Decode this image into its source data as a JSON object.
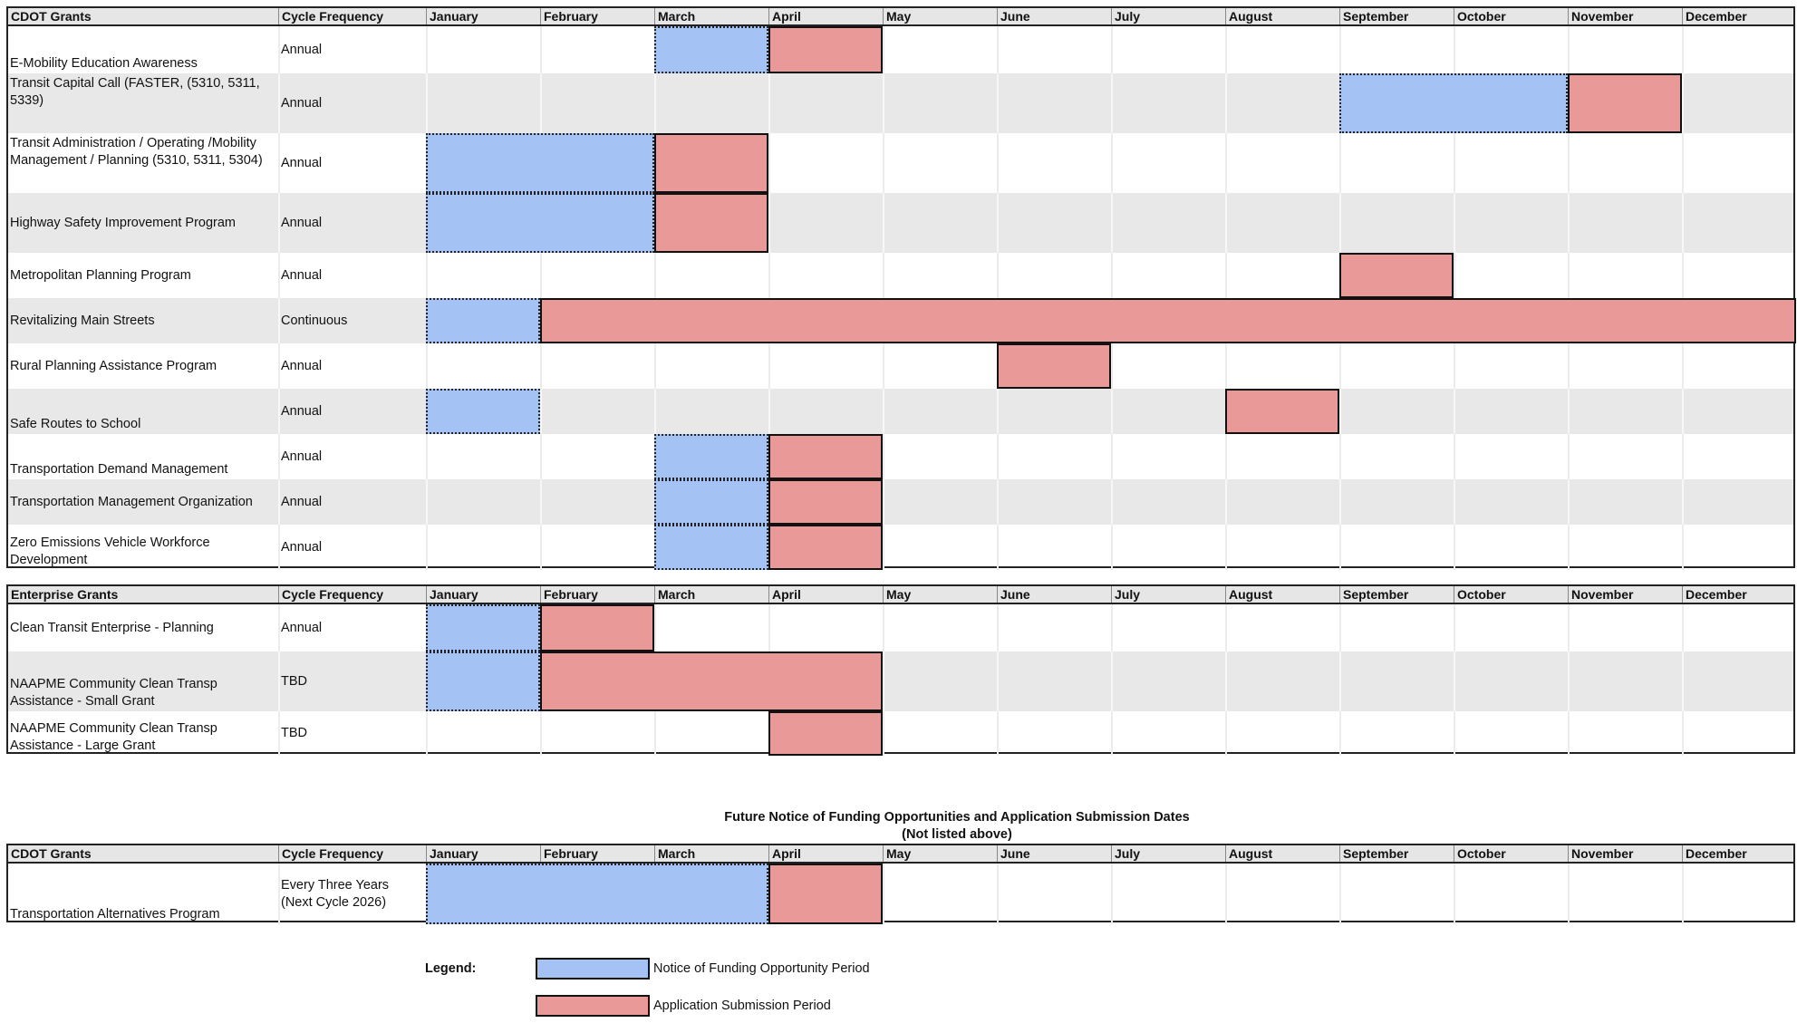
{
  "months": [
    "January",
    "February",
    "March",
    "April",
    "May",
    "June",
    "July",
    "August",
    "September",
    "October",
    "November",
    "December"
  ],
  "colors": {
    "notice": "#a4c2f4",
    "application": "#ea9999",
    "row_shade": "#e8e8e8",
    "header": "#e6e6e6"
  },
  "cdot": {
    "header": {
      "title": "CDOT Grants",
      "freq": "Cycle Frequency"
    },
    "rows": [
      {
        "name": "E-Mobility Education Awareness",
        "freq": "Annual",
        "notice": [
          3,
          3
        ],
        "application": [
          4,
          4
        ]
      },
      {
        "name": "Transit Capital Call (FASTER, (5310, 5311, 5339)",
        "freq": "Annual",
        "notice": [
          9,
          10
        ],
        "application": [
          11,
          11
        ]
      },
      {
        "name": "Transit Administration / Operating /Mobility Management / Planning (5310, 5311, 5304)",
        "freq": "Annual",
        "notice": [
          1,
          2
        ],
        "application": [
          3,
          3
        ]
      },
      {
        "name": "Highway Safety Improvement Program",
        "freq": "Annual",
        "notice": [
          1,
          2
        ],
        "application": [
          3,
          3
        ]
      },
      {
        "name": "Metropolitan Planning Program",
        "freq": "Annual",
        "notice": null,
        "application": [
          9,
          9
        ]
      },
      {
        "name": "Revitalizing Main Streets",
        "freq": "Continuous",
        "notice": [
          1,
          1
        ],
        "application": [
          2,
          12
        ]
      },
      {
        "name": "Rural Planning Assistance Program",
        "freq": "Annual",
        "notice": null,
        "application": [
          6,
          6
        ]
      },
      {
        "name": "Safe Routes to School",
        "freq": "Annual",
        "notice": [
          1,
          1
        ],
        "application": [
          8,
          8
        ]
      },
      {
        "name": "Transportation Demand Management",
        "freq": "Annual",
        "notice": [
          3,
          3
        ],
        "application": [
          4,
          4
        ]
      },
      {
        "name": "Transportation Management Organization",
        "freq": "Annual",
        "notice": [
          3,
          3
        ],
        "application": [
          4,
          4
        ]
      },
      {
        "name": "Zero Emissions Vehicle Workforce Development",
        "freq": "Annual",
        "notice": [
          3,
          3
        ],
        "application": [
          4,
          4
        ]
      }
    ]
  },
  "enterprise": {
    "header": {
      "title": "Enterprise Grants",
      "freq": "Cycle Frequency"
    },
    "rows": [
      {
        "name": "Clean Transit Enterprise - Planning",
        "freq": "Annual",
        "notice": [
          1,
          1
        ],
        "application": [
          2,
          2
        ]
      },
      {
        "name": "NAAPME Community Clean Transp Assistance - Small Grant",
        "freq": "TBD",
        "notice": [
          1,
          1
        ],
        "application": [
          2,
          4
        ]
      },
      {
        "name": "NAAPME Community Clean Transp Assistance - Large Grant",
        "freq": "TBD",
        "notice": null,
        "application": [
          4,
          4
        ]
      }
    ]
  },
  "future": {
    "title": "Future Notice of Funding Opportunities and Application Submission Dates",
    "subtitle": "(Not listed above)",
    "header": {
      "title": "CDOT Grants",
      "freq": "Cycle Frequency"
    },
    "rows": [
      {
        "name": "Transportation Alternatives Program",
        "freq": "Every Three Years (Next Cycle 2026)",
        "notice": [
          1,
          3
        ],
        "application": [
          4,
          4
        ]
      }
    ]
  },
  "legend": {
    "label": "Legend:",
    "notice": "Notice of Funding Opportunity Period",
    "application": "Application Submission Period"
  }
}
